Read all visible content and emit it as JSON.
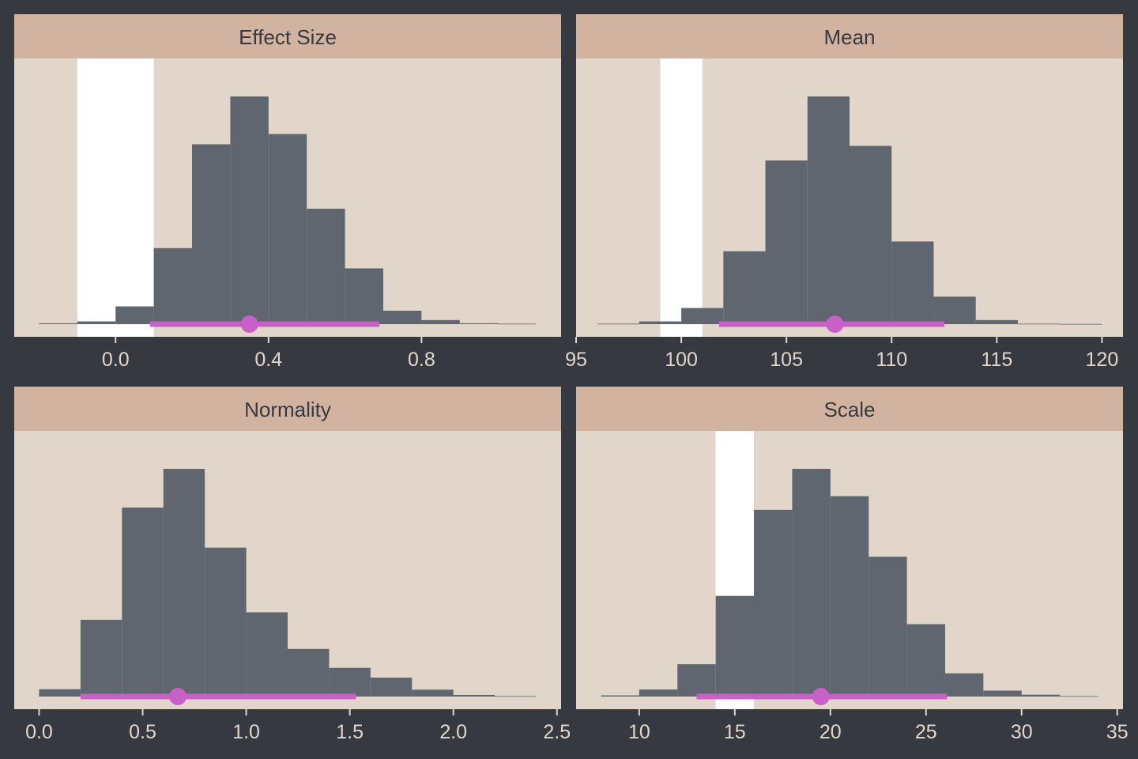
{
  "colors": {
    "background": "#363a40",
    "panel": "#e2d6ca",
    "strip": "#d2b39f",
    "bar": "#5f6670",
    "interval": "#c860c8",
    "highlight": "#ffffff"
  },
  "chart_data": [
    {
      "type": "bar",
      "title": "Effect Size",
      "xlim": [
        -0.265,
        1.165
      ],
      "xticks": [
        "0.0",
        "0.4",
        "0.8"
      ],
      "xtick_values": [
        0.0,
        0.4,
        0.8
      ],
      "highlight_range": [
        -0.1,
        0.1
      ],
      "bins": [
        {
          "x0": -0.2,
          "x1": -0.1,
          "value": 0.004
        },
        {
          "x0": -0.1,
          "x1": 0.0,
          "value": 0.012
        },
        {
          "x0": 0.0,
          "x1": 0.1,
          "value": 0.078
        },
        {
          "x0": 0.1,
          "x1": 0.2,
          "value": 0.334
        },
        {
          "x0": 0.2,
          "x1": 0.3,
          "value": 0.79
        },
        {
          "x0": 0.3,
          "x1": 0.4,
          "value": 1.0
        },
        {
          "x0": 0.4,
          "x1": 0.5,
          "value": 0.835
        },
        {
          "x0": 0.5,
          "x1": 0.6,
          "value": 0.507
        },
        {
          "x0": 0.6,
          "x1": 0.7,
          "value": 0.245
        },
        {
          "x0": 0.7,
          "x1": 0.8,
          "value": 0.059
        },
        {
          "x0": 0.8,
          "x1": 0.9,
          "value": 0.018
        },
        {
          "x0": 0.9,
          "x1": 1.0,
          "value": 0.004
        },
        {
          "x0": 1.0,
          "x1": 1.1,
          "value": 0.002
        }
      ],
      "point_estimate": 0.35,
      "interval": [
        0.09,
        0.69
      ]
    },
    {
      "type": "bar",
      "title": "Mean",
      "xlim": [
        95,
        121
      ],
      "xticks": [
        "95",
        "100",
        "105",
        "110",
        "115",
        "120"
      ],
      "xtick_values": [
        95,
        100,
        105,
        110,
        115,
        120
      ],
      "highlight_range": [
        99,
        101
      ],
      "bins": [
        {
          "x0": 96,
          "x1": 98,
          "value": 0.002
        },
        {
          "x0": 98,
          "x1": 100,
          "value": 0.012
        },
        {
          "x0": 100,
          "x1": 102,
          "value": 0.071
        },
        {
          "x0": 102,
          "x1": 104,
          "value": 0.32
        },
        {
          "x0": 104,
          "x1": 106,
          "value": 0.719
        },
        {
          "x0": 106,
          "x1": 108,
          "value": 1.0
        },
        {
          "x0": 108,
          "x1": 110,
          "value": 0.783
        },
        {
          "x0": 110,
          "x1": 112,
          "value": 0.363
        },
        {
          "x0": 112,
          "x1": 114,
          "value": 0.121
        },
        {
          "x0": 114,
          "x1": 116,
          "value": 0.018
        },
        {
          "x0": 116,
          "x1": 118,
          "value": 0.002
        },
        {
          "x0": 118,
          "x1": 120,
          "value": 0.001
        }
      ],
      "point_estimate": 107.3,
      "interval": [
        101.8,
        112.5
      ]
    },
    {
      "type": "bar",
      "title": "Normality",
      "xlim": [
        -0.12,
        2.52
      ],
      "xticks": [
        "0.0",
        "0.5",
        "1.0",
        "1.5",
        "2.0",
        "2.5"
      ],
      "xtick_values": [
        0.0,
        0.5,
        1.0,
        1.5,
        2.0,
        2.5
      ],
      "highlight_range": null,
      "bins": [
        {
          "x0": 0.0,
          "x1": 0.2,
          "value": 0.032
        },
        {
          "x0": 0.2,
          "x1": 0.4,
          "value": 0.337
        },
        {
          "x0": 0.4,
          "x1": 0.6,
          "value": 0.83
        },
        {
          "x0": 0.6,
          "x1": 0.8,
          "value": 1.0
        },
        {
          "x0": 0.8,
          "x1": 1.0,
          "value": 0.654
        },
        {
          "x0": 1.0,
          "x1": 1.2,
          "value": 0.37
        },
        {
          "x0": 1.2,
          "x1": 1.4,
          "value": 0.209
        },
        {
          "x0": 1.4,
          "x1": 1.6,
          "value": 0.126
        },
        {
          "x0": 1.6,
          "x1": 1.8,
          "value": 0.083
        },
        {
          "x0": 1.8,
          "x1": 2.0,
          "value": 0.03
        },
        {
          "x0": 2.0,
          "x1": 2.2,
          "value": 0.007
        },
        {
          "x0": 2.2,
          "x1": 2.4,
          "value": 0.002
        }
      ],
      "point_estimate": 0.67,
      "interval": [
        0.2,
        1.53
      ]
    },
    {
      "type": "bar",
      "title": "Scale",
      "xlim": [
        6.7,
        35.3
      ],
      "xticks": [
        "10",
        "15",
        "20",
        "25",
        "30",
        "35"
      ],
      "xtick_values": [
        10,
        15,
        20,
        25,
        30,
        35
      ],
      "highlight_range": [
        14,
        16
      ],
      "bins": [
        {
          "x0": 8,
          "x1": 10,
          "value": 0.005
        },
        {
          "x0": 10,
          "x1": 12,
          "value": 0.031
        },
        {
          "x0": 12,
          "x1": 14,
          "value": 0.142
        },
        {
          "x0": 14,
          "x1": 16,
          "value": 0.442
        },
        {
          "x0": 16,
          "x1": 18,
          "value": 0.82
        },
        {
          "x0": 18,
          "x1": 20,
          "value": 1.0
        },
        {
          "x0": 20,
          "x1": 22,
          "value": 0.88
        },
        {
          "x0": 22,
          "x1": 24,
          "value": 0.614
        },
        {
          "x0": 24,
          "x1": 26,
          "value": 0.318
        },
        {
          "x0": 26,
          "x1": 28,
          "value": 0.102
        },
        {
          "x0": 28,
          "x1": 30,
          "value": 0.026
        },
        {
          "x0": 30,
          "x1": 32,
          "value": 0.008
        },
        {
          "x0": 32,
          "x1": 34,
          "value": 0.002
        }
      ],
      "point_estimate": 19.5,
      "interval": [
        13,
        26.1
      ]
    }
  ]
}
